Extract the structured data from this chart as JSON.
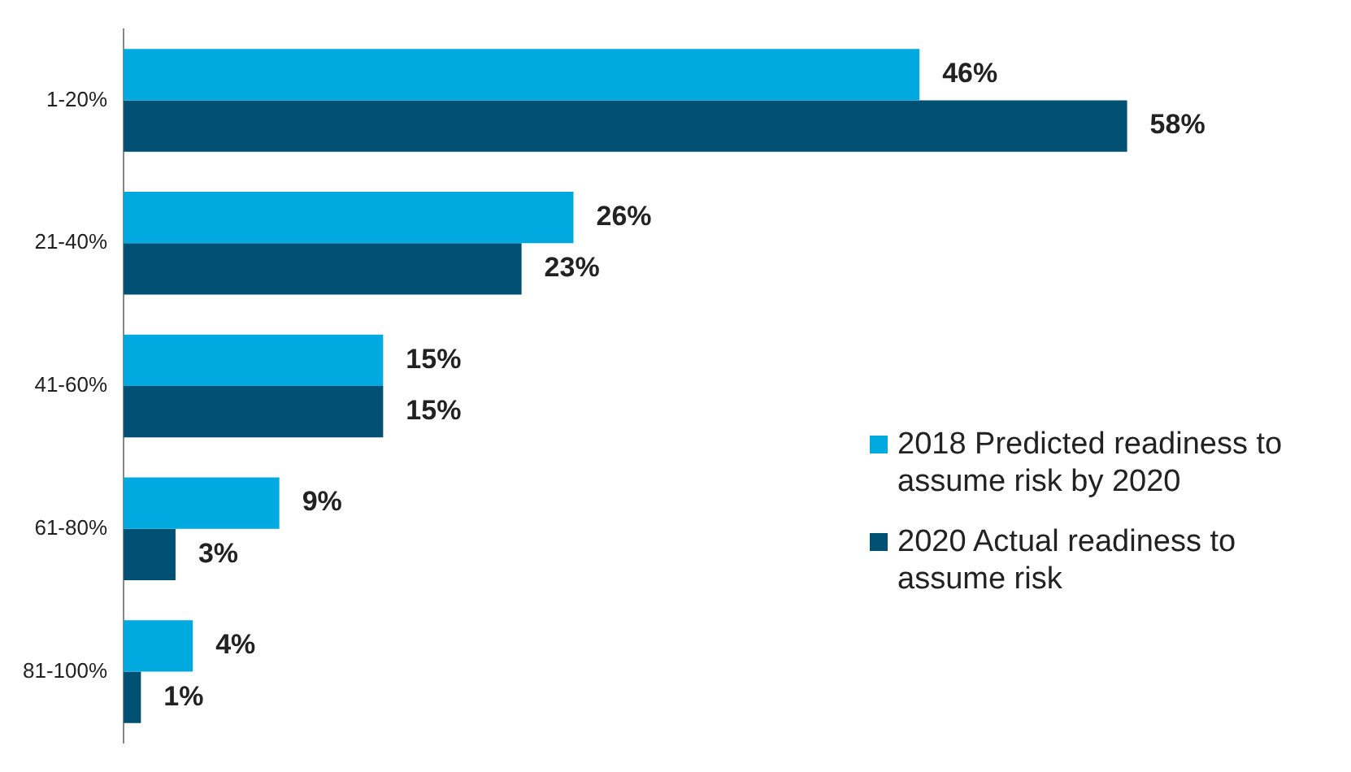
{
  "chart_data": {
    "type": "bar",
    "orientation": "horizontal",
    "categories": [
      "1-20%",
      "21-40%",
      "41-60%",
      "61-80%",
      "81-100%"
    ],
    "series": [
      {
        "name": "2018 Predicted readiness to assume risk by 2020",
        "color": "#00a9e0",
        "values": [
          46,
          26,
          15,
          9,
          4
        ],
        "value_labels": [
          "46%",
          "26%",
          "15%",
          "9%",
          "4%"
        ]
      },
      {
        "name": "2020 Actual readiness to assume risk",
        "color": "#005073",
        "values": [
          58,
          23,
          15,
          3,
          1
        ],
        "value_labels": [
          "58%",
          "23%",
          "15%",
          "3%",
          "1%"
        ]
      }
    ],
    "legend": "right",
    "grid": false,
    "tick_labels": "y"
  }
}
